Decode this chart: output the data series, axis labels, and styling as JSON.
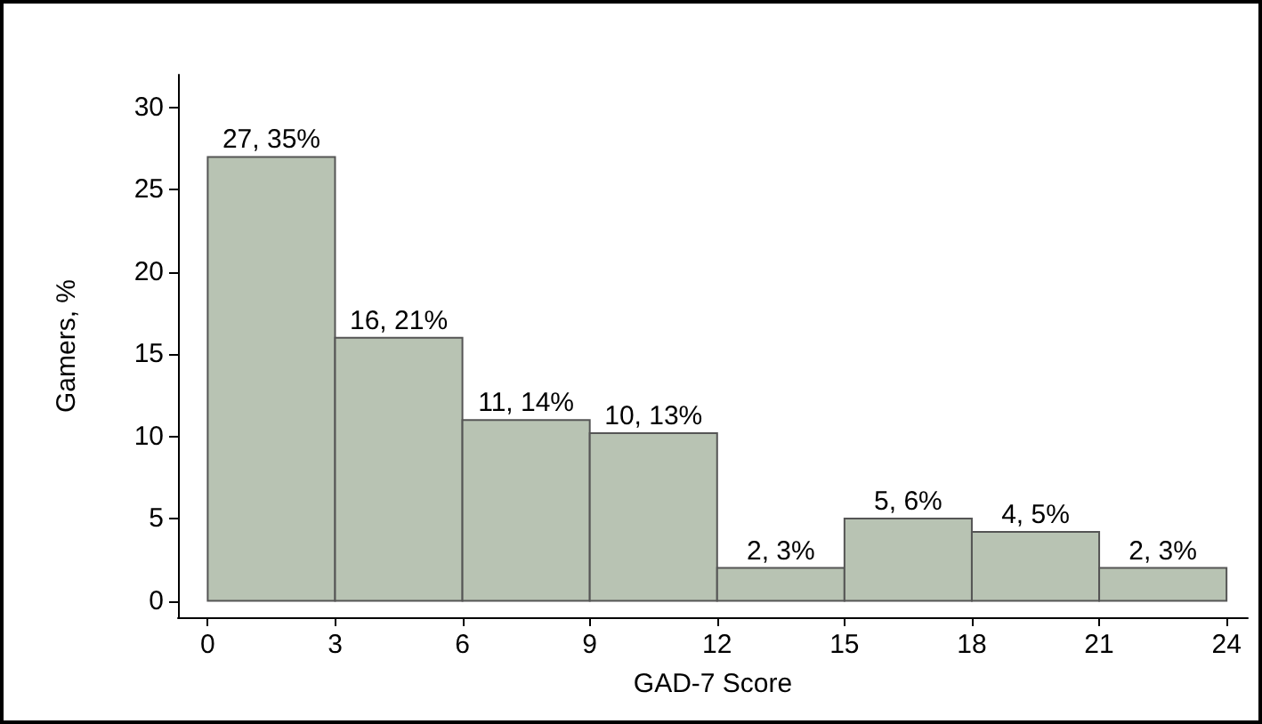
{
  "chart_data": {
    "type": "histogram",
    "xlabel": "GAD-7 Score",
    "ylabel": "Gamers, %",
    "bins": [
      0,
      3,
      6,
      9,
      12,
      15,
      18,
      21,
      24
    ],
    "values": [
      27,
      16,
      11,
      10.2,
      2,
      5,
      4.2,
      2
    ],
    "value_labels": [
      "27, 35%",
      "16, 21%",
      "11, 14%",
      "10, 13%",
      "2, 3%",
      "5, 6%",
      "4, 5%",
      "2, 3%"
    ],
    "color": "#b8c3b3",
    "xlim": [
      -0.7,
      24.5
    ],
    "xticks": [
      0,
      3,
      6,
      9,
      12,
      15,
      18,
      21,
      24
    ],
    "ylim": [
      -1,
      32
    ],
    "yticks": [
      0,
      5,
      10,
      15,
      20,
      25,
      30
    ]
  }
}
